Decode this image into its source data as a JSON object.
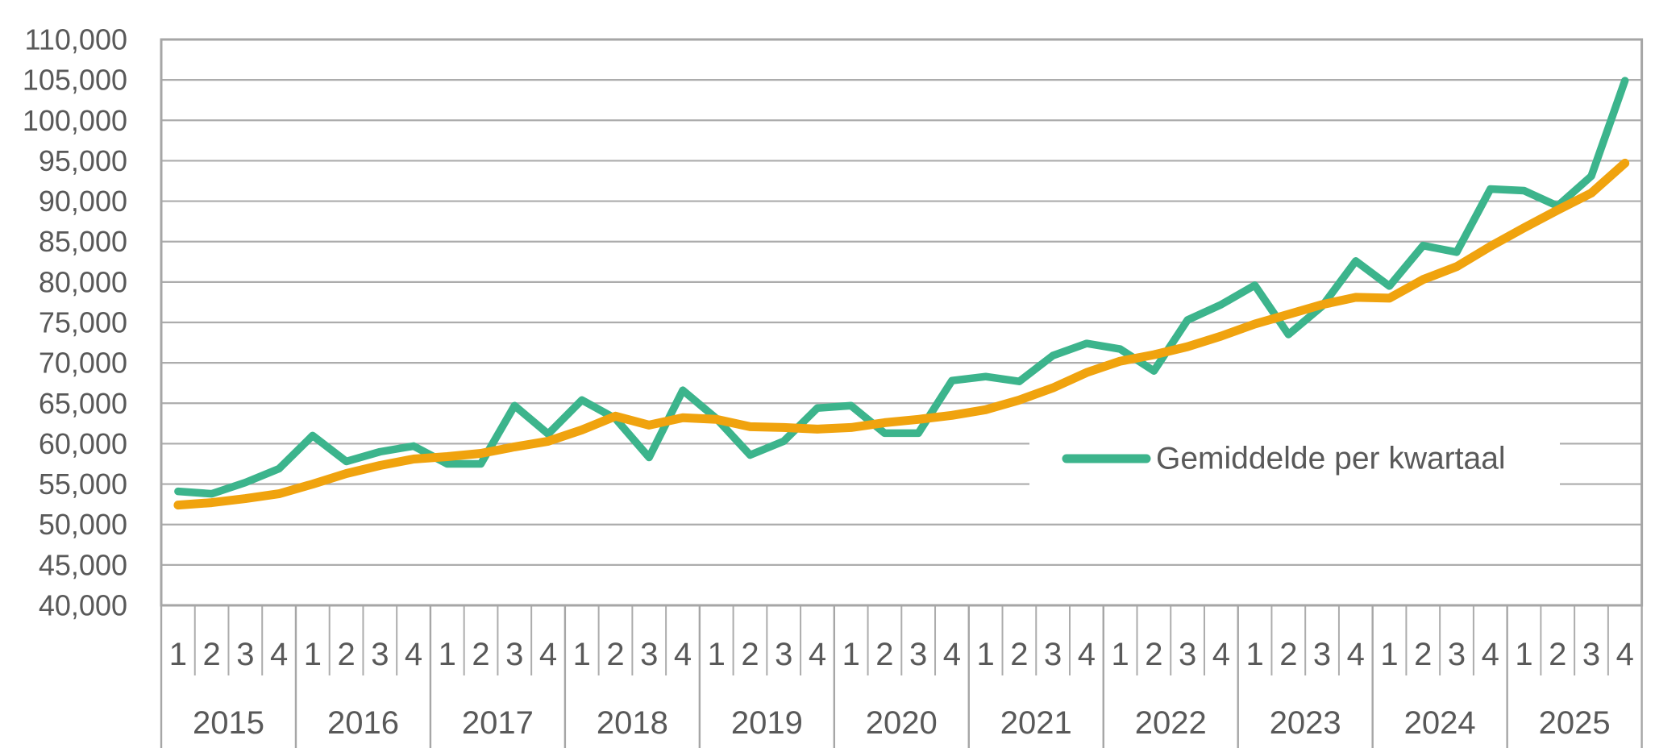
{
  "chart_data": {
    "type": "line",
    "title": "",
    "x_years": [
      2015,
      2016,
      2017,
      2018,
      2019,
      2020,
      2021,
      2022,
      2023,
      2024,
      2025
    ],
    "quarter_labels": [
      "1",
      "2",
      "3",
      "4"
    ],
    "y_axis": {
      "min": 40000,
      "max": 110000,
      "step": 5000,
      "tick_labels": [
        "40,000",
        "45,000",
        "50,000",
        "55,000",
        "60,000",
        "65,000",
        "70,000",
        "75,000",
        "80,000",
        "85,000",
        "90,000",
        "95,000",
        "100,000",
        "105,000",
        "110,000"
      ]
    },
    "ylim": [
      40000,
      110000
    ],
    "grid": true,
    "legend_position": "inside-right",
    "series": [
      {
        "name": "Gemiddelde per kwartaal",
        "color": "#3CB48C",
        "in_legend": true,
        "values": [
          54100,
          53800,
          55200,
          56900,
          61000,
          57800,
          59000,
          59700,
          57500,
          57500,
          64700,
          61200,
          65400,
          63100,
          58300,
          66600,
          63100,
          58600,
          60300,
          64400,
          64700,
          61300,
          61300,
          67800,
          68300,
          67700,
          70900,
          72400,
          71700,
          69000,
          75300,
          77200,
          79600,
          73500,
          77000,
          82600,
          79500,
          84500,
          83700,
          91500,
          91300,
          89400,
          93100,
          104900
        ]
      },
      {
        "name": "",
        "color": "#F0A30E",
        "in_legend": false,
        "values": [
          52400,
          52700,
          53200,
          53800,
          55000,
          56300,
          57300,
          58100,
          58400,
          58800,
          59600,
          60300,
          61700,
          63400,
          62300,
          63200,
          63000,
          62100,
          62000,
          61800,
          62000,
          62600,
          63000,
          63500,
          64200,
          65400,
          66900,
          68800,
          70200,
          71000,
          72000,
          73300,
          74800,
          76000,
          77200,
          78100,
          78000,
          80300,
          81900,
          84400,
          86700,
          88900,
          91000,
          94700
        ]
      }
    ]
  },
  "legend": {
    "label": "Gemiddelde per kwartaal"
  },
  "colors": {
    "series_quarterly": "#3CB48C",
    "series_trend": "#F0A30E",
    "gridline": "#ACACAC",
    "plot_border": "#A6A6A6",
    "tick_line": "#ACACAC",
    "text": "#595959",
    "background": "#FFFFFF"
  }
}
